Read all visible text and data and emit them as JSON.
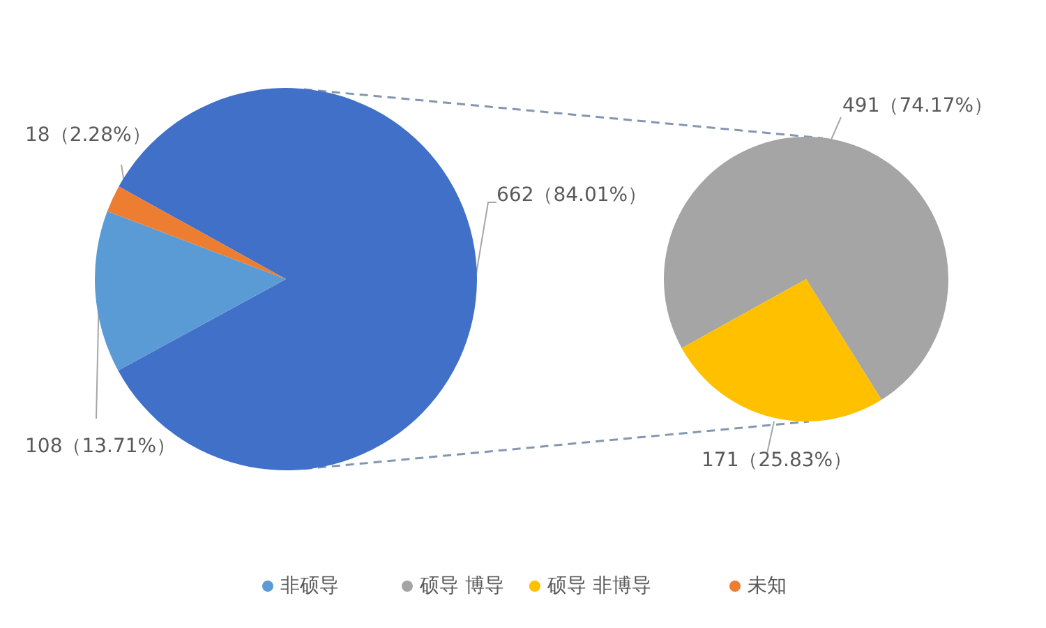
{
  "chart_data": [
    {
      "type": "pie",
      "categories": [
        null,
        "非硕导",
        "未知"
      ],
      "values": [
        662,
        108,
        18
      ],
      "colors": [
        "#4170c8",
        "#5b9bd5",
        "#ed7d31"
      ],
      "value_labels": [
        "662（84.01%）",
        "108（13.71%）",
        "18（2.28%）"
      ],
      "legend": "bottom"
    },
    {
      "type": "pie",
      "categories": [
        "硕导 博导",
        "硕导 非博导"
      ],
      "values": [
        491,
        171
      ],
      "colors": [
        "#a5a5a5",
        "#ffc000"
      ],
      "value_labels": [
        "491（74.17%）",
        "171（25.83%）"
      ],
      "legend": "bottom"
    }
  ]
}
